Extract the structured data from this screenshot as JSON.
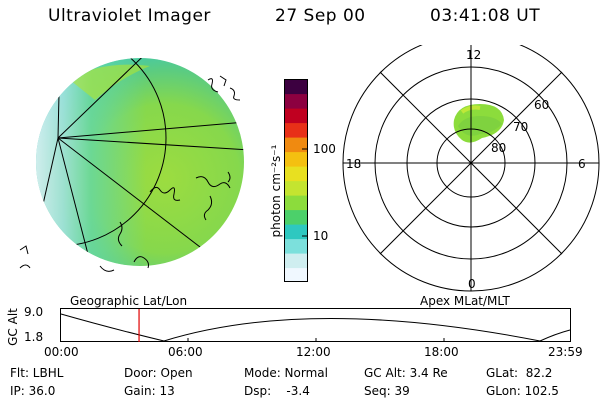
{
  "header": {
    "instrument": "Ultraviolet Imager",
    "date": "27 Sep 00",
    "time": "03:41:08 UT"
  },
  "colorbar": {
    "unit_label": "photon cm⁻²s⁻¹",
    "ticks": [
      "100",
      "10"
    ],
    "colors": [
      "#f0f8ff",
      "#cfeef0",
      "#7ce0dc",
      "#2ec8c0",
      "#4cd06a",
      "#8cdc3c",
      "#c4e430",
      "#e8e020",
      "#f4c010",
      "#f08a10",
      "#e83018",
      "#c00020",
      "#8c0040",
      "#3c0040"
    ]
  },
  "polar_plot": {
    "mlt_labels": [
      "12",
      "18",
      "6",
      "0"
    ],
    "lat_labels": [
      "60",
      "70",
      "80"
    ]
  },
  "captions": {
    "left": "Geographic Lat/Lon",
    "right": "Apex MLat/MLT"
  },
  "altitude_plot": {
    "axis_label": "GC Alt",
    "y_ticks": [
      "9.0",
      "1.8"
    ],
    "x_ticks": [
      "00:00",
      "06:00",
      "12:00",
      "18:00",
      "23:59"
    ],
    "current_time_marker_hours": 3.68
  },
  "status": {
    "flt": "Flt: LBHL",
    "ip": "IP: 36.0",
    "door": "Door: Open",
    "gain": "Gain: 13",
    "mode": "Mode: Normal",
    "dsp": "Dsp:    -3.4",
    "gc_alt": "GC Alt: 3.4 Re",
    "seq": "Seq: 39",
    "glat": "GLat:  82.2",
    "glon": "GLon: 102.5"
  }
}
